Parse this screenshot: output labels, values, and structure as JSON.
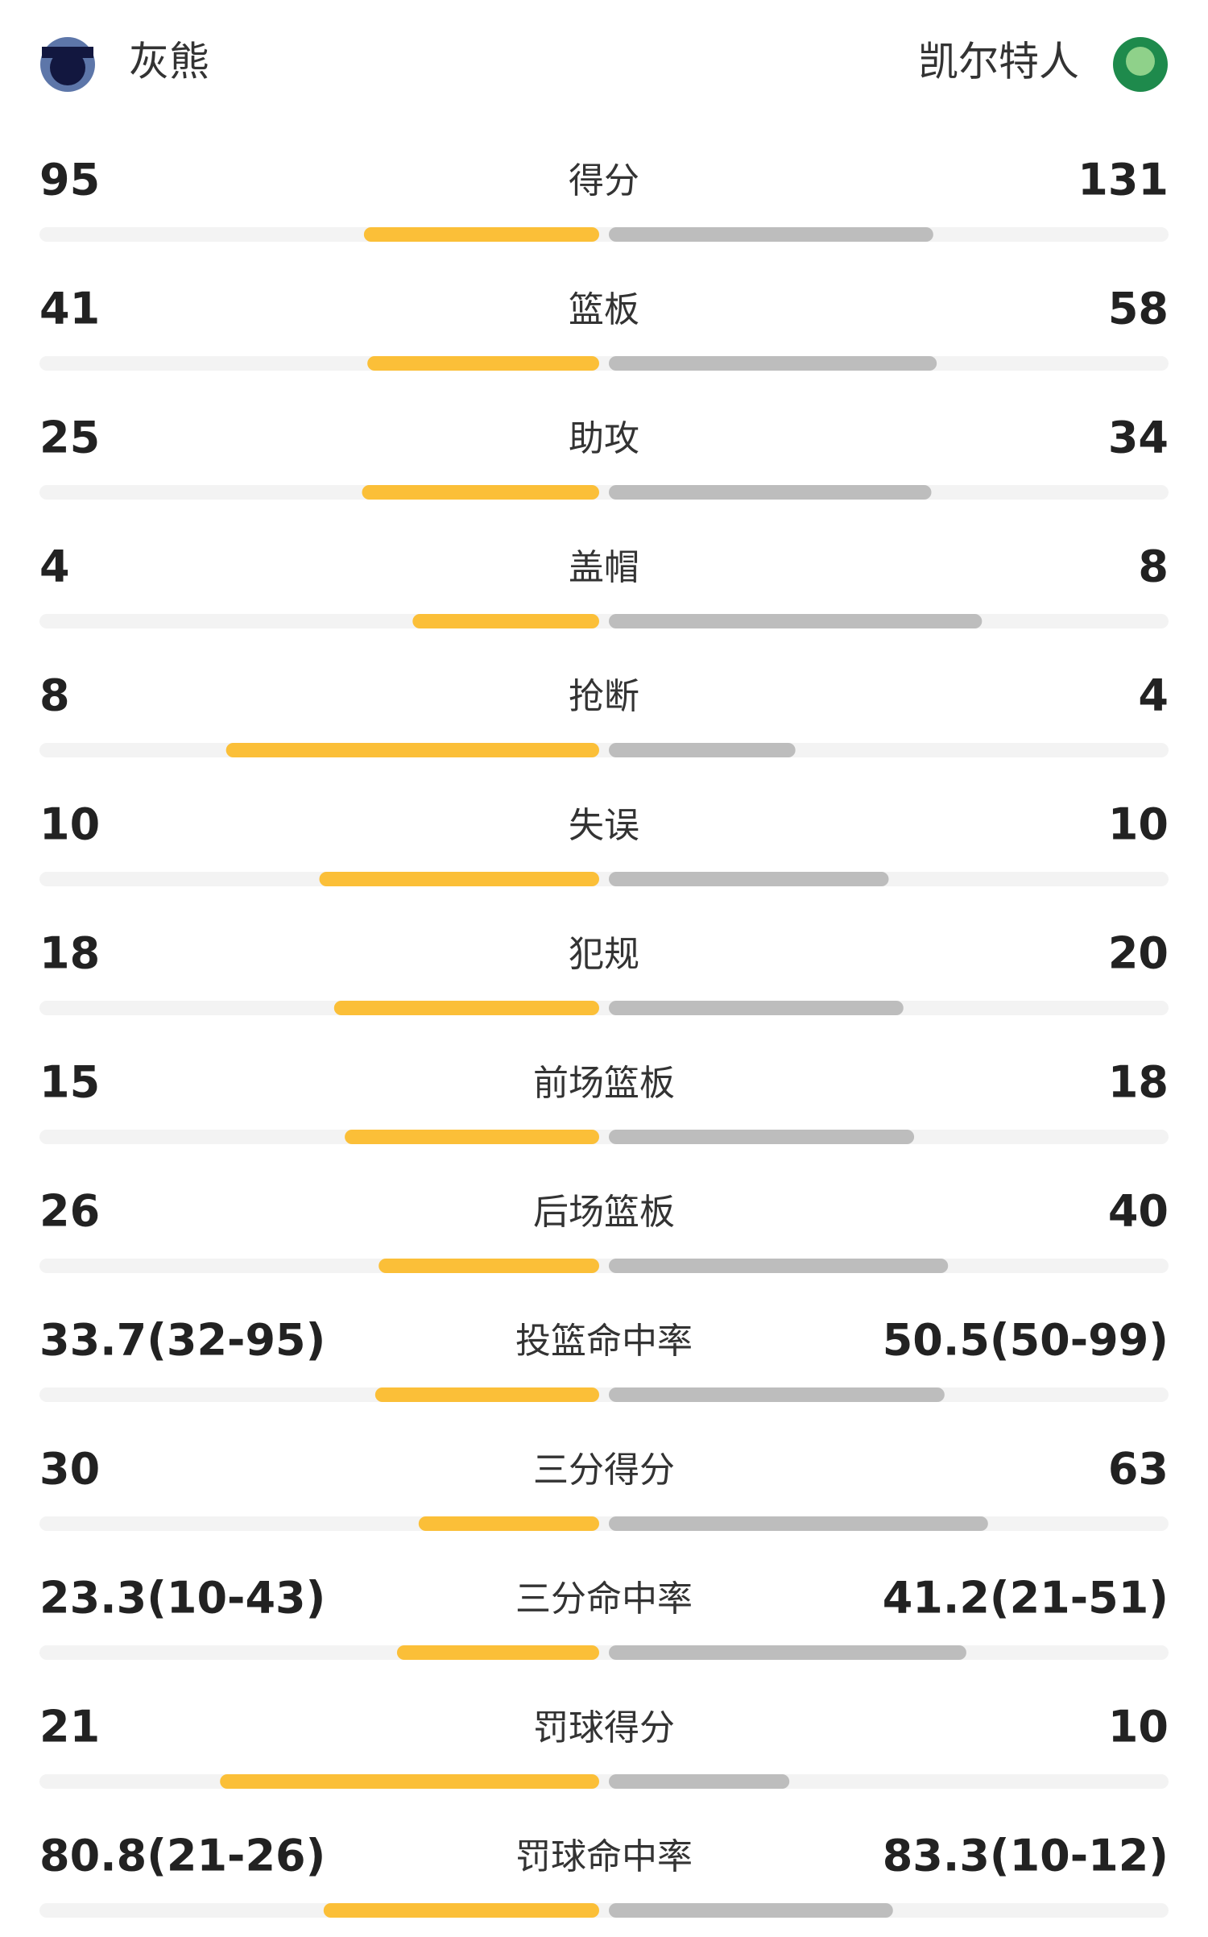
{
  "header": {
    "home_team": "灰熊",
    "away_team": "凯尔特人"
  },
  "rows": [
    {
      "label": "得分",
      "home": 95,
      "away": 131
    },
    {
      "label": "篮板",
      "home": 41,
      "away": 58
    },
    {
      "label": "助攻",
      "home": 25,
      "away": 34
    },
    {
      "label": "盖帽",
      "home": 4,
      "away": 8
    },
    {
      "label": "抢断",
      "home": 8,
      "away": 4
    },
    {
      "label": "失误",
      "home": 10,
      "away": 10
    },
    {
      "label": "犯规",
      "home": 18,
      "away": 20
    },
    {
      "label": "前场篮板",
      "home": 15,
      "away": 18
    },
    {
      "label": "后场篮板",
      "home": 26,
      "away": 40
    },
    {
      "label": "投篮命中率",
      "home": {
        "value": 33.7,
        "label": "33.7(32-95)"
      },
      "away": {
        "value": 50.5,
        "label": "50.5(50-99)"
      }
    },
    {
      "label": "三分得分",
      "home": 30,
      "away": 63
    },
    {
      "label": "三分命中率",
      "home": {
        "value": 23.3,
        "label": "23.3(10-43)"
      },
      "away": {
        "value": 41.2,
        "label": "41.2(21-51)"
      }
    },
    {
      "label": "罚球得分",
      "home": 21,
      "away": 10
    },
    {
      "label": "罚球命中率",
      "home": {
        "value": 80.8,
        "label": "80.8(21-26)"
      },
      "away": {
        "value": 83.3,
        "label": "83.3(10-12)"
      }
    }
  ]
}
